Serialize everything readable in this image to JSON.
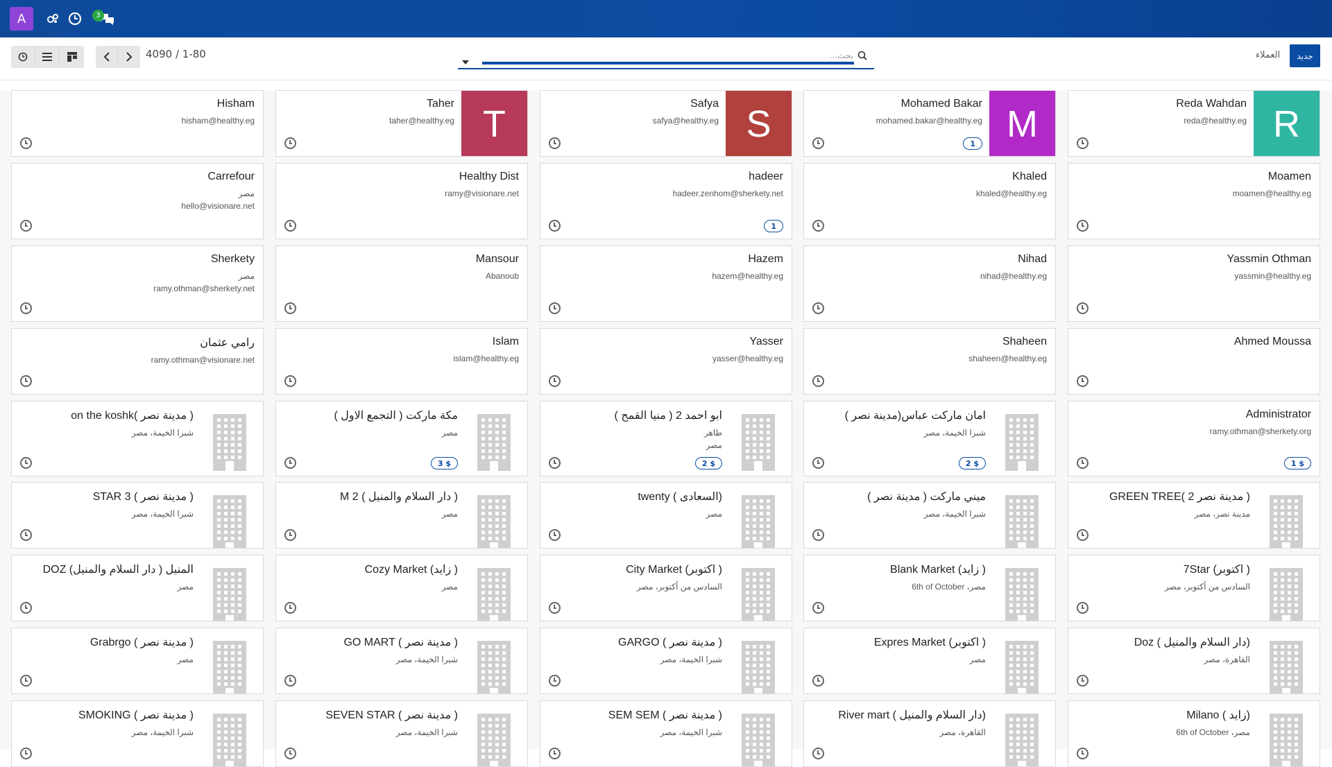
{
  "topbar": {
    "app_letter": "A",
    "messages_count": "3",
    "icons": [
      "apps-icon",
      "clock-icon",
      "chat-icon"
    ]
  },
  "control": {
    "pager": "4090 / 1-80",
    "new_label": "جديد",
    "breadcrumb": "العملاء",
    "search_placeholder": "بحث..."
  },
  "colors": {
    "brand": "#0b4ca3",
    "accent_purple": "#8e44d9"
  },
  "cards": [
    {
      "name": "Hisham",
      "lines": [
        "hisham@healthy.eg"
      ],
      "avatar": null,
      "tag": ""
    },
    {
      "name": "Taher",
      "lines": [
        "taher@healthy.eg"
      ],
      "avatar": {
        "letter": "T",
        "color": "#b73a5a"
      },
      "tag": ""
    },
    {
      "name": "Safya",
      "lines": [
        "safya@healthy.eg"
      ],
      "avatar": {
        "letter": "S",
        "color": "#b1413c"
      },
      "tag": ""
    },
    {
      "name": "Mohamed Bakar",
      "lines": [
        "mohamed.bakar@healthy.eg"
      ],
      "avatar": {
        "letter": "M",
        "color": "#b12ac7"
      },
      "tag": "1"
    },
    {
      "name": "Reda Wahdan",
      "lines": [
        "reda@healthy.eg"
      ],
      "avatar": {
        "letter": "R",
        "color": "#2fb6a3"
      },
      "tag": ""
    },
    {
      "name": "Carrefour",
      "lines": [
        "مصر",
        "hello@visionare.net"
      ],
      "avatar": null,
      "tag": ""
    },
    {
      "name": "Healthy Dist",
      "lines": [
        "ramy@visionare.net"
      ],
      "avatar": null,
      "tag": ""
    },
    {
      "name": "hadeer",
      "lines": [
        "hadeer.zenhom@sherkety.net"
      ],
      "avatar": null,
      "tag": "1"
    },
    {
      "name": "Khaled",
      "lines": [
        "khaled@healthy.eg"
      ],
      "avatar": null,
      "tag": ""
    },
    {
      "name": "Moamen",
      "lines": [
        "moamen@healthy.eg"
      ],
      "avatar": null,
      "tag": ""
    },
    {
      "name": "Sherkety",
      "lines": [
        "مصر",
        "ramy.othman@sherkety.net"
      ],
      "avatar": null,
      "tag": ""
    },
    {
      "name": "Mansour",
      "lines": [
        "Abanoub"
      ],
      "avatar": null,
      "tag": ""
    },
    {
      "name": "Hazem",
      "lines": [
        "hazem@healthy.eg"
      ],
      "avatar": null,
      "tag": ""
    },
    {
      "name": "Nihad",
      "lines": [
        "nihad@healthy.eg"
      ],
      "avatar": null,
      "tag": ""
    },
    {
      "name": "Yassmin Othman",
      "lines": [
        "yassmin@healthy.eg"
      ],
      "avatar": null,
      "tag": ""
    },
    {
      "name": "رامي عثمان",
      "lines": [
        "ramy.othman@visionare.net"
      ],
      "avatar": null,
      "tag": ""
    },
    {
      "name": "Islam",
      "lines": [
        "islam@healthy.eg"
      ],
      "avatar": null,
      "tag": ""
    },
    {
      "name": "Yasser",
      "lines": [
        "yasser@healthy.eg"
      ],
      "avatar": null,
      "tag": ""
    },
    {
      "name": "Shaheen",
      "lines": [
        "shaheen@healthy.eg"
      ],
      "avatar": null,
      "tag": ""
    },
    {
      "name": "Ahmed Moussa",
      "lines": [],
      "avatar": null,
      "tag": ""
    },
    {
      "name": "on the koshk( مدينة نصر )",
      "lines": [
        "شبرا الخيمة، مصر"
      ],
      "avatar": "building",
      "tag": ""
    },
    {
      "name": "مكة ماركت ( التجمع الاول )",
      "lines": [
        "مصر"
      ],
      "avatar": "building",
      "tag": "3 $"
    },
    {
      "name": "ابو احمد 2 ( منيا القمح )",
      "lines": [
        "طاهر",
        "مصر"
      ],
      "avatar": "building",
      "tag": "2 $"
    },
    {
      "name": "امان ماركت عباس(مدينة نصر )",
      "lines": [
        "شبرا الخيمة، مصر"
      ],
      "avatar": "building",
      "tag": "2 $"
    },
    {
      "name": "Administrator",
      "lines": [
        "ramy.othman@sherkety.org"
      ],
      "avatar": null,
      "tag": "1 $"
    },
    {
      "name": "STAR 3 ( مدينة نصر )",
      "lines": [
        "شبرا الخيمة، مصر"
      ],
      "avatar": "building",
      "tag": ""
    },
    {
      "name": "M 2 ( دار السلام والمنيل )",
      "lines": [
        "مصر"
      ],
      "avatar": "building",
      "tag": ""
    },
    {
      "name": "twenty ( السعادى)",
      "lines": [
        "مصر"
      ],
      "avatar": "building",
      "tag": ""
    },
    {
      "name": "ميني ماركت ( مدينة نصر )",
      "lines": [
        "شبرا الخيمة، مصر"
      ],
      "avatar": "building",
      "tag": ""
    },
    {
      "name": "GREEN TREE( مدينة نصر 2 )",
      "lines": [
        "مدينة نصر، مصر"
      ],
      "avatar": "building",
      "tag": ""
    },
    {
      "name": "DOZ المنيل ( دار السلام والمنيل)",
      "lines": [
        "مصر"
      ],
      "avatar": "building",
      "tag": ""
    },
    {
      "name": "Cozy Market (زايد )",
      "lines": [
        "مصر"
      ],
      "avatar": "building",
      "tag": ""
    },
    {
      "name": "City Market (اكتوبر )",
      "lines": [
        "السادس من أكتوبر، مصر"
      ],
      "avatar": "building",
      "tag": ""
    },
    {
      "name": "Blank Market (زايد )",
      "lines": [
        "6th of October ،مصر"
      ],
      "avatar": "building",
      "tag": ""
    },
    {
      "name": "7Star (اكتوبر )",
      "lines": [
        "السادس من أكتوبر، مصر"
      ],
      "avatar": "building",
      "tag": ""
    },
    {
      "name": "Grabrgo ( مدينة نصر )",
      "lines": [
        "مصر"
      ],
      "avatar": "building",
      "tag": ""
    },
    {
      "name": "GO MART ( مدينة نصر )",
      "lines": [
        "شبرا الخيمة، مصر"
      ],
      "avatar": "building",
      "tag": ""
    },
    {
      "name": "GARGO ( مدينة نصر )",
      "lines": [
        "شبرا الخيمة، مصر"
      ],
      "avatar": "building",
      "tag": ""
    },
    {
      "name": "Expres Market (اكتوبر )",
      "lines": [
        "مصر"
      ],
      "avatar": "building",
      "tag": ""
    },
    {
      "name": "Doz ( دار السلام والمنيل)",
      "lines": [
        "القاهرة، مصر"
      ],
      "avatar": "building",
      "tag": ""
    },
    {
      "name": "SMOKING ( مدينة نصر )",
      "lines": [
        "شبرا الخيمة، مصر"
      ],
      "avatar": "building",
      "tag": ""
    },
    {
      "name": "SEVEN STAR ( مدينة نصر )",
      "lines": [
        "شبرا الخيمة، مصر"
      ],
      "avatar": "building",
      "tag": ""
    },
    {
      "name": "SEM SEM ( مدينة نصر )",
      "lines": [
        "شبرا الخيمة، مصر"
      ],
      "avatar": "building",
      "tag": ""
    },
    {
      "name": "River mart ( دار السلام والمنيل)",
      "lines": [
        "القاهرة، مصر"
      ],
      "avatar": "building",
      "tag": ""
    },
    {
      "name": "Milano ( زايد)",
      "lines": [
        "6th of October ،مصر"
      ],
      "avatar": "building",
      "tag": ""
    }
  ]
}
